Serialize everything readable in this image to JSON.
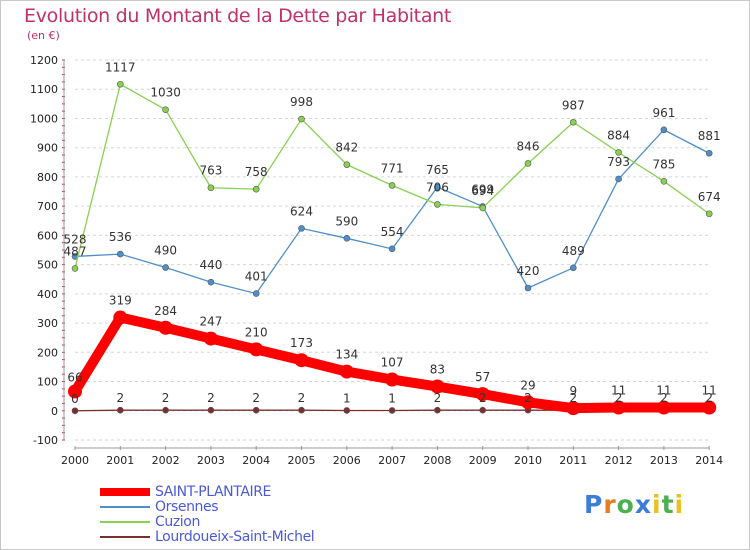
{
  "title": "Evolution du Montant de la Dette par Habitant",
  "subtitle": "(en €)",
  "logo": {
    "text": "Proxiti",
    "colors": [
      "#3b7dd8",
      "#e87b1e",
      "#4caf50",
      "#3b7dd8",
      "#e8c21e",
      "#4caf50",
      "#e8c21e"
    ]
  },
  "chart_data": {
    "type": "line",
    "x": [
      2000,
      2001,
      2002,
      2003,
      2004,
      2005,
      2006,
      2007,
      2008,
      2009,
      2010,
      2011,
      2012,
      2013,
      2014
    ],
    "ylim": [
      -100,
      1200
    ],
    "yticks": [
      -100,
      0,
      100,
      200,
      300,
      400,
      500,
      600,
      700,
      800,
      900,
      1000,
      1100,
      1200
    ],
    "grid": "horizontal-dashed",
    "legend_position": "bottom-left",
    "series": [
      {
        "name": "SAINT-PLANTAIRE",
        "color": "#ff0000",
        "values": [
          66,
          319,
          284,
          247,
          210,
          173,
          134,
          107,
          83,
          57,
          29,
          9,
          11,
          11,
          11
        ],
        "labels": [
          "66",
          "319",
          "284",
          "247",
          "210",
          "173",
          "134",
          "107",
          "83",
          "57",
          "29",
          "9",
          "11",
          "11",
          "11"
        ]
      },
      {
        "name": "Orsennes",
        "color": "#4f8fc9",
        "values": [
          528,
          536,
          490,
          440,
          401,
          624,
          590,
          554,
          765,
          699,
          420,
          489,
          793,
          961,
          881
        ],
        "labels": [
          "528",
          "536",
          "490",
          "440",
          "401",
          "624",
          "590",
          "554",
          "765",
          "699",
          "420",
          "489",
          "793",
          "961",
          "881"
        ]
      },
      {
        "name": "Cuzion",
        "color": "#88d050",
        "values": [
          487,
          1117,
          1030,
          763,
          758,
          998,
          842,
          771,
          706,
          694,
          846,
          987,
          884,
          785,
          674
        ],
        "labels": [
          "487",
          "1117",
          "1030",
          "763",
          "758",
          "998",
          "842",
          "771",
          "706",
          "694",
          "846",
          "987",
          "884",
          "785",
          "674"
        ]
      },
      {
        "name": "Lourdoueix-Saint-Michel",
        "color": "#7a2f2f",
        "values": [
          0,
          2,
          2,
          2,
          2,
          2,
          1,
          1,
          2,
          2,
          2,
          2,
          2,
          2,
          2
        ],
        "labels": [
          "0",
          "2",
          "2",
          "2",
          "2",
          "2",
          "1",
          "1",
          "2",
          "2",
          "2",
          "2",
          "2",
          "2",
          "2"
        ]
      }
    ]
  }
}
